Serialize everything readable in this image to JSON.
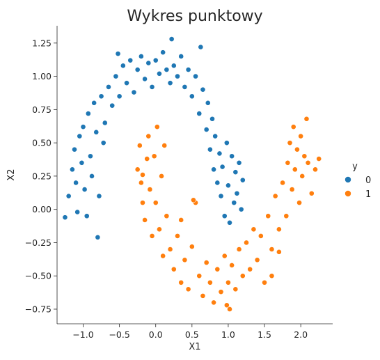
{
  "chart_data": {
    "type": "scatter",
    "title": "Wykres punktowy",
    "xlabel": "X1",
    "ylabel": "X2",
    "xlim": [
      -1.36,
      2.44
    ],
    "ylim": [
      -0.86,
      1.38
    ],
    "xticks": [
      -1.0,
      -0.5,
      0.0,
      0.5,
      1.0,
      1.5,
      2.0
    ],
    "xtick_labels": [
      "−1.0",
      "−0.5",
      "0.0",
      "0.5",
      "1.0",
      "1.5",
      "2.0"
    ],
    "yticks": [
      -0.75,
      -0.5,
      -0.25,
      0.0,
      0.25,
      0.5,
      0.75,
      1.0,
      1.25
    ],
    "ytick_labels": [
      "−0.75",
      "−0.50",
      "−0.25",
      "0.00",
      "0.25",
      "0.50",
      "0.75",
      "1.00",
      "1.25"
    ],
    "grid": false,
    "legend": {
      "title": "y",
      "placement": "right"
    },
    "series": [
      {
        "name": "0",
        "color": "#1f77b4",
        "points": [
          [
            -1.25,
            -0.06
          ],
          [
            -1.2,
            0.1
          ],
          [
            -1.15,
            0.3
          ],
          [
            -1.12,
            0.45
          ],
          [
            -1.1,
            0.2
          ],
          [
            -1.08,
            -0.02
          ],
          [
            -1.05,
            0.55
          ],
          [
            -1.02,
            0.35
          ],
          [
            -1.0,
            0.62
          ],
          [
            -0.98,
            0.15
          ],
          [
            -0.95,
            -0.05
          ],
          [
            -0.93,
            0.72
          ],
          [
            -0.9,
            0.4
          ],
          [
            -0.88,
            0.25
          ],
          [
            -0.85,
            0.8
          ],
          [
            -0.82,
            0.58
          ],
          [
            -0.8,
            -0.21
          ],
          [
            -0.78,
            0.1
          ],
          [
            -0.75,
            0.85
          ],
          [
            -0.72,
            0.5
          ],
          [
            -0.7,
            0.65
          ],
          [
            -0.65,
            0.92
          ],
          [
            -0.6,
            0.78
          ],
          [
            -0.55,
            1.0
          ],
          [
            -0.52,
            1.17
          ],
          [
            -0.5,
            0.85
          ],
          [
            -0.45,
            1.08
          ],
          [
            -0.4,
            0.95
          ],
          [
            -0.35,
            1.12
          ],
          [
            -0.3,
            0.88
          ],
          [
            -0.25,
            1.05
          ],
          [
            -0.2,
            1.15
          ],
          [
            -0.15,
            0.98
          ],
          [
            -0.1,
            1.1
          ],
          [
            -0.05,
            0.92
          ],
          [
            0.0,
            1.12
          ],
          [
            0.05,
            1.02
          ],
          [
            0.1,
            1.18
          ],
          [
            0.15,
            1.05
          ],
          [
            0.2,
            0.95
          ],
          [
            0.22,
            1.28
          ],
          [
            0.25,
            1.08
          ],
          [
            0.3,
            1.0
          ],
          [
            0.35,
            1.15
          ],
          [
            0.4,
            0.92
          ],
          [
            0.45,
            1.05
          ],
          [
            0.5,
            0.85
          ],
          [
            0.55,
            1.0
          ],
          [
            0.6,
            0.72
          ],
          [
            0.62,
            1.22
          ],
          [
            0.65,
            0.9
          ],
          [
            0.7,
            0.6
          ],
          [
            0.72,
            0.8
          ],
          [
            0.75,
            0.45
          ],
          [
            0.78,
            0.68
          ],
          [
            0.8,
            0.3
          ],
          [
            0.82,
            0.55
          ],
          [
            0.85,
            0.2
          ],
          [
            0.88,
            0.42
          ],
          [
            0.9,
            0.1
          ],
          [
            0.92,
            0.32
          ],
          [
            0.95,
            -0.05
          ],
          [
            0.98,
            0.5
          ],
          [
            1.0,
            0.18
          ],
          [
            1.02,
            -0.1
          ],
          [
            1.05,
            0.4
          ],
          [
            1.08,
            0.05
          ],
          [
            1.1,
            0.28
          ],
          [
            1.12,
            0.12
          ],
          [
            1.15,
            0.35
          ],
          [
            1.18,
            0.0
          ],
          [
            1.2,
            0.22
          ]
        ]
      },
      {
        "name": "1",
        "color": "#ff7f0e",
        "points": [
          [
            -0.25,
            0.3
          ],
          [
            -0.22,
            0.48
          ],
          [
            -0.2,
            0.2
          ],
          [
            -0.18,
            0.05
          ],
          [
            -0.15,
            -0.08
          ],
          [
            -0.12,
            0.38
          ],
          [
            -0.1,
            0.55
          ],
          [
            -0.08,
            0.15
          ],
          [
            -0.05,
            -0.2
          ],
          [
            -0.02,
            0.4
          ],
          [
            0.0,
            0.05
          ],
          [
            0.02,
            0.62
          ],
          [
            0.05,
            -0.15
          ],
          [
            0.08,
            0.25
          ],
          [
            0.1,
            -0.35
          ],
          [
            0.15,
            -0.05
          ],
          [
            0.2,
            -0.3
          ],
          [
            0.25,
            -0.45
          ],
          [
            0.3,
            -0.2
          ],
          [
            0.35,
            -0.55
          ],
          [
            0.4,
            -0.38
          ],
          [
            0.45,
            -0.6
          ],
          [
            0.5,
            -0.28
          ],
          [
            0.55,
            0.05
          ],
          [
            0.6,
            -0.5
          ],
          [
            0.65,
            -0.65
          ],
          [
            0.7,
            -0.4
          ],
          [
            0.75,
            -0.55
          ],
          [
            0.8,
            -0.7
          ],
          [
            0.85,
            -0.45
          ],
          [
            0.9,
            -0.62
          ],
          [
            0.95,
            -0.35
          ],
          [
            1.0,
            -0.55
          ],
          [
            1.02,
            -0.75
          ],
          [
            1.05,
            -0.42
          ],
          [
            1.1,
            -0.6
          ],
          [
            1.15,
            -0.3
          ],
          [
            1.2,
            -0.5
          ],
          [
            1.25,
            -0.25
          ],
          [
            1.3,
            -0.45
          ],
          [
            1.35,
            -0.15
          ],
          [
            1.4,
            -0.38
          ],
          [
            1.45,
            -0.2
          ],
          [
            1.5,
            -0.55
          ],
          [
            1.55,
            -0.05
          ],
          [
            1.6,
            -0.3
          ],
          [
            1.65,
            0.1
          ],
          [
            1.7,
            -0.15
          ],
          [
            1.75,
            0.2
          ],
          [
            1.8,
            -0.05
          ],
          [
            1.82,
            0.35
          ],
          [
            1.85,
            0.5
          ],
          [
            1.88,
            0.15
          ],
          [
            1.9,
            0.62
          ],
          [
            1.92,
            0.3
          ],
          [
            1.95,
            0.45
          ],
          [
            1.98,
            0.05
          ],
          [
            2.0,
            0.55
          ],
          [
            2.02,
            0.25
          ],
          [
            2.05,
            0.4
          ],
          [
            2.08,
            0.68
          ],
          [
            2.1,
            0.35
          ],
          [
            2.15,
            0.12
          ],
          [
            2.2,
            0.3
          ],
          [
            2.25,
            0.38
          ],
          [
            1.6,
            -0.5
          ],
          [
            1.7,
            -0.32
          ],
          [
            0.35,
            -0.08
          ],
          [
            0.52,
            0.07
          ],
          [
            0.98,
            -0.72
          ],
          [
            -0.18,
            0.26
          ],
          [
            0.12,
            0.48
          ]
        ]
      }
    ]
  }
}
